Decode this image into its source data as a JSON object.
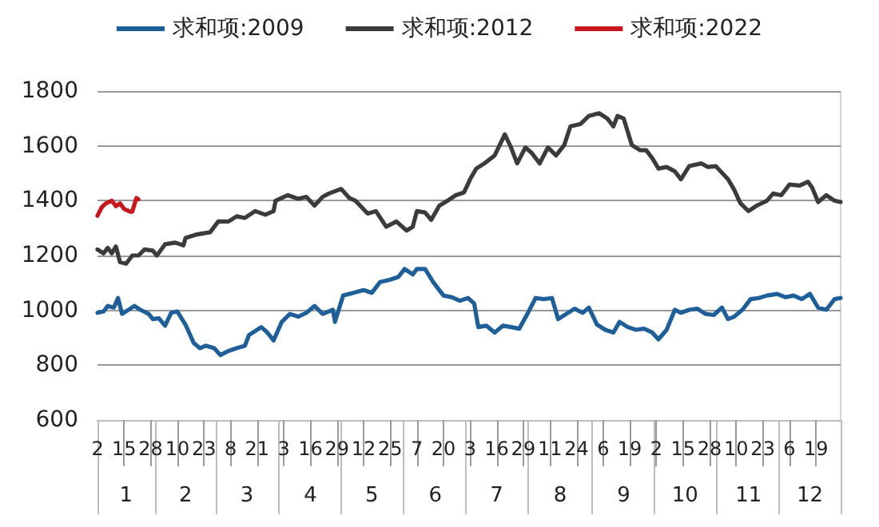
{
  "chart_data": {
    "type": "line",
    "series": [
      {
        "name": "求和项:2009",
        "color": "#1f5f99",
        "x": [
          "--01-02",
          "--01-05",
          "--01-07",
          "--01-10",
          "--01-12",
          "--01-14",
          "--01-18",
          "--01-20",
          "--01-23",
          "--01-27",
          "--01-29",
          "--02-01",
          "--02-04",
          "--02-07",
          "--02-10",
          "--02-14",
          "--02-18",
          "--02-21",
          "--02-24",
          "--02-28",
          "--03-03",
          "--03-07",
          "--03-11",
          "--03-15",
          "--03-17",
          "--03-23",
          "--03-26",
          "--03-29",
          "--04-02",
          "--04-06",
          "--04-10",
          "--04-14",
          "--04-18",
          "--04-22",
          "--04-27",
          "--04-28",
          "--05-02",
          "--05-07",
          "--05-12",
          "--05-16",
          "--05-20",
          "--05-25",
          "--05-29",
          "--06-01",
          "--06-05",
          "--06-07",
          "--06-11",
          "--06-15",
          "--06-17",
          "--06-20",
          "--06-24",
          "--06-28",
          "--07-02",
          "--07-05",
          "--07-07",
          "--07-11",
          "--07-15",
          "--07-19",
          "--07-23",
          "--07-27",
          "--07-31",
          "--08-04",
          "--08-08",
          "--08-12",
          "--08-15",
          "--08-19",
          "--08-23",
          "--08-27",
          "--08-30",
          "--09-03",
          "--09-07",
          "--09-11",
          "--09-14",
          "--09-18",
          "--09-22",
          "--09-26",
          "--09-30",
          "--10-03",
          "--10-07",
          "--10-11",
          "--10-14",
          "--10-18",
          "--10-22",
          "--10-26",
          "--10-30",
          "--11-03",
          "--11-06",
          "--11-09",
          "--11-13",
          "--11-17",
          "--11-21",
          "--11-25",
          "--11-30",
          "--12-04",
          "--12-08",
          "--12-12",
          "--12-16",
          "--12-20",
          "--12-24",
          "--12-28",
          "--12-31"
        ],
        "values": [
          991,
          996,
          1016,
          1010,
          1045,
          987,
          1006,
          1016,
          1002,
          987,
          968,
          971,
          944,
          991,
          996,
          948,
          881,
          862,
          871,
          862,
          837,
          852,
          862,
          871,
          910,
          939,
          919,
          890,
          958,
          987,
          977,
          991,
          1016,
          987,
          1002,
          958,
          1054,
          1064,
          1074,
          1064,
          1103,
          1112,
          1122,
          1151,
          1131,
          1151,
          1151,
          1103,
          1083,
          1054,
          1048,
          1035,
          1045,
          1025,
          939,
          944,
          919,
          944,
          939,
          933,
          987,
          1045,
          1041,
          1045,
          968,
          987,
          1006,
          991,
          1010,
          948,
          929,
          919,
          958,
          939,
          929,
          933,
          919,
          894,
          929,
          1002,
          991,
          1002,
          1006,
          987,
          983,
          1010,
          968,
          977,
          1002,
          1041,
          1045,
          1054,
          1060,
          1048,
          1054,
          1041,
          1060,
          1010,
          1002,
          1041,
          1045
        ]
      },
      {
        "name": "求和项:2012",
        "color": "#3b3b3b",
        "x": [
          "--01-02",
          "--01-05",
          "--01-07",
          "--01-09",
          "--01-11",
          "--01-13",
          "--01-16",
          "--01-19",
          "--01-22",
          "--01-25",
          "--01-29",
          "--01-31",
          "--02-04",
          "--02-09",
          "--02-13",
          "--02-14",
          "--02-19",
          "--02-26",
          "--03-02",
          "--03-07",
          "--03-11",
          "--03-15",
          "--03-20",
          "--03-25",
          "--03-29",
          "--03-30",
          "--04-05",
          "--04-10",
          "--04-14",
          "--04-18",
          "--04-22",
          "--04-25",
          "--05-01",
          "--05-05",
          "--05-08",
          "--05-14",
          "--05-18",
          "--05-23",
          "--05-28",
          "--06-02",
          "--06-05",
          "--06-07",
          "--06-11",
          "--06-14",
          "--06-18",
          "--06-22",
          "--06-26",
          "--06-30",
          "--07-03",
          "--07-06",
          "--07-10",
          "--07-15",
          "--07-20",
          "--07-23",
          "--07-26",
          "--07-30",
          "--08-02",
          "--08-06",
          "--08-10",
          "--08-14",
          "--08-18",
          "--08-21",
          "--08-26",
          "--08-30",
          "--09-04",
          "--09-08",
          "--09-11",
          "--09-13",
          "--09-16",
          "--09-20",
          "--09-24",
          "--09-27",
          "--09-30",
          "--10-03",
          "--10-07",
          "--10-11",
          "--10-14",
          "--10-18",
          "--10-24",
          "--10-27",
          "--10-31",
          "--11-06",
          "--11-09",
          "--11-12",
          "--11-16",
          "--11-20",
          "--11-25",
          "--11-28",
          "--12-02",
          "--12-06",
          "--12-11",
          "--12-15",
          "--12-17",
          "--12-20",
          "--12-24",
          "--12-28",
          "--12-31"
        ],
        "values": [
          1222,
          1208,
          1228,
          1208,
          1233,
          1176,
          1170,
          1200,
          1200,
          1222,
          1218,
          1200,
          1241,
          1247,
          1237,
          1264,
          1276,
          1285,
          1324,
          1324,
          1343,
          1337,
          1362,
          1349,
          1362,
          1400,
          1420,
          1407,
          1414,
          1382,
          1414,
          1426,
          1443,
          1410,
          1400,
          1353,
          1362,
          1305,
          1324,
          1291,
          1305,
          1362,
          1357,
          1330,
          1382,
          1400,
          1420,
          1430,
          1478,
          1517,
          1536,
          1565,
          1642,
          1594,
          1536,
          1594,
          1575,
          1536,
          1594,
          1565,
          1603,
          1671,
          1680,
          1709,
          1719,
          1700,
          1671,
          1709,
          1700,
          1603,
          1584,
          1584,
          1555,
          1517,
          1523,
          1507,
          1478,
          1526,
          1536,
          1523,
          1526,
          1478,
          1440,
          1391,
          1362,
          1382,
          1400,
          1426,
          1420,
          1459,
          1455,
          1469,
          1449,
          1395,
          1420,
          1400,
          1395
        ]
      },
      {
        "name": "求和项:2022",
        "color": "#c8161d",
        "x": [
          "--01-02",
          "--01-04",
          "--01-06",
          "--01-09",
          "--01-11",
          "--01-13",
          "--01-15",
          "--01-18",
          "--01-19",
          "--01-21",
          "--01-22"
        ],
        "values": [
          1345,
          1375,
          1390,
          1400,
          1380,
          1390,
          1370,
          1360,
          1360,
          1410,
          1405
        ]
      }
    ],
    "xlim": [
      "--01-02",
      "--12-31"
    ],
    "xticks": [
      {
        "value": "--01-02",
        "label": "2"
      },
      {
        "value": "--01-15",
        "label": "15"
      },
      {
        "value": "--01-28",
        "label": "28"
      },
      {
        "value": "--02-10",
        "label": "10"
      },
      {
        "value": "--02-23",
        "label": "23"
      },
      {
        "value": "--03-08",
        "label": "8"
      },
      {
        "value": "--03-21",
        "label": "21"
      },
      {
        "value": "--04-03",
        "label": "3"
      },
      {
        "value": "--04-16",
        "label": "16"
      },
      {
        "value": "--04-29",
        "label": "29"
      },
      {
        "value": "--05-12",
        "label": "12"
      },
      {
        "value": "--05-25",
        "label": "25"
      },
      {
        "value": "--06-07",
        "label": "7"
      },
      {
        "value": "--06-20",
        "label": "20"
      },
      {
        "value": "--07-03",
        "label": "3"
      },
      {
        "value": "--07-16",
        "label": "16"
      },
      {
        "value": "--07-29",
        "label": "29"
      },
      {
        "value": "--08-11",
        "label": "11"
      },
      {
        "value": "--08-24",
        "label": "24"
      },
      {
        "value": "--09-06",
        "label": "6"
      },
      {
        "value": "--09-19",
        "label": "19"
      },
      {
        "value": "--10-02",
        "label": "2"
      },
      {
        "value": "--10-15",
        "label": "15"
      },
      {
        "value": "--10-28",
        "label": "28"
      },
      {
        "value": "--11-10",
        "label": "10"
      },
      {
        "value": "--11-23",
        "label": "23"
      },
      {
        "value": "--12-06",
        "label": "6"
      },
      {
        "value": "--12-19",
        "label": "19"
      }
    ],
    "x2lim": [
      "--01-02",
      "--12-31"
    ],
    "x2ticks": [
      {
        "value": "--01-16",
        "label": "1"
      },
      {
        "value": "--02-14",
        "label": "2"
      },
      {
        "value": "--03-16",
        "label": "3"
      },
      {
        "value": "--04-16",
        "label": "4"
      },
      {
        "value": "--05-16",
        "label": "5"
      },
      {
        "value": "--06-16",
        "label": "6"
      },
      {
        "value": "--07-16",
        "label": "7"
      },
      {
        "value": "--08-16",
        "label": "8"
      },
      {
        "value": "--09-16",
        "label": "9"
      },
      {
        "value": "--10-16",
        "label": "10"
      },
      {
        "value": "--11-16",
        "label": "11"
      },
      {
        "value": "--12-16",
        "label": "12"
      }
    ],
    "ylim": [
      600,
      1800
    ],
    "yticks": [
      600,
      800,
      1000,
      1200,
      1400,
      1600,
      1800
    ],
    "grid": "y",
    "legend": "top",
    "marker": "none",
    "line_style": "solid"
  }
}
